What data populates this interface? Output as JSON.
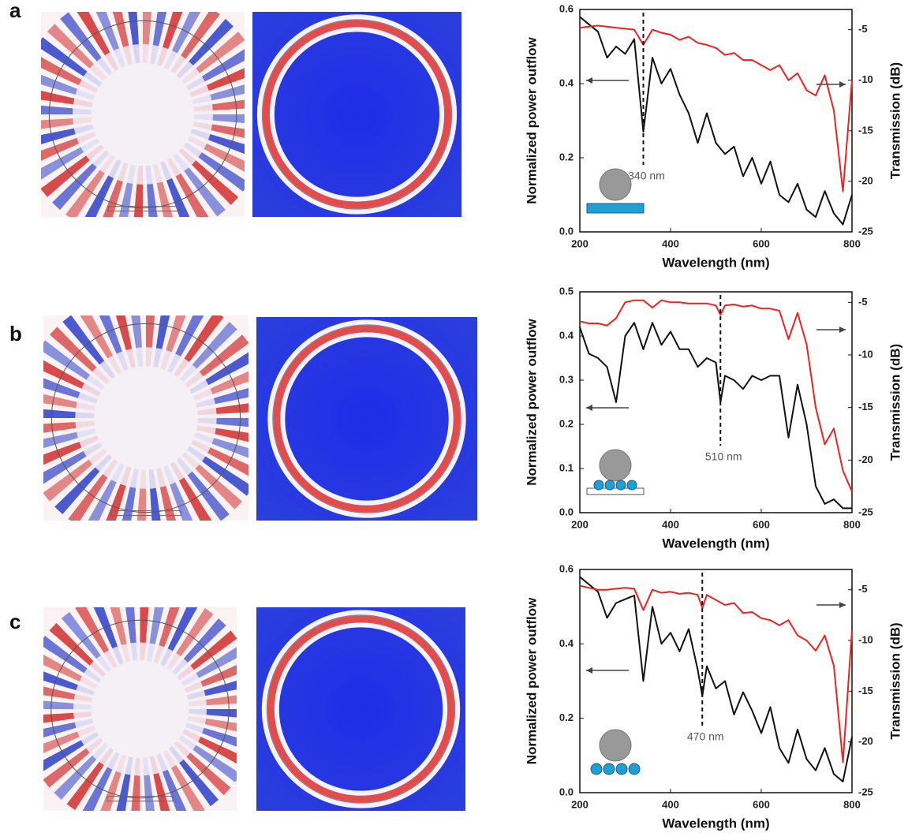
{
  "chart_data": [
    {
      "type": "line",
      "panel": "a",
      "x_label": "Wavelength (nm)",
      "y_label": "Normalized power outflow",
      "y2_label": "Transmission (dB)",
      "x": [
        200,
        220,
        240,
        260,
        280,
        300,
        320,
        340,
        360,
        380,
        400,
        420,
        440,
        460,
        480,
        500,
        520,
        540,
        560,
        580,
        600,
        620,
        640,
        660,
        680,
        700,
        720,
        740,
        760,
        780,
        800
      ],
      "xlim": [
        200,
        800
      ],
      "xticks": [
        200,
        400,
        600,
        800
      ],
      "ylim": [
        0,
        0.6
      ],
      "yticks": [
        {
          "value": 0,
          "label": "0.0"
        },
        0.2,
        0.4,
        0.6
      ],
      "y2lim": [
        -25,
        -3
      ],
      "y2ticks": [
        -5,
        -10,
        -15,
        -20,
        -25
      ],
      "series": [
        {
          "color": "#111111",
          "values": [
            0.58,
            0.56,
            0.54,
            0.47,
            0.5,
            0.48,
            0.52,
            0.27,
            0.47,
            0.4,
            0.44,
            0.37,
            0.32,
            0.24,
            0.32,
            0.24,
            0.21,
            0.23,
            0.15,
            0.2,
            0.13,
            0.19,
            0.1,
            0.08,
            0.13,
            0.06,
            0.04,
            0.11,
            0.05,
            0.02,
            0.1
          ]
        },
        {
          "color": "#ee2222",
          "axis": "y2",
          "values": [
            -4.8,
            -4.7,
            -4.6,
            -4.7,
            -4.8,
            -4.9,
            -5,
            -6.5,
            -5,
            -5.3,
            -5.5,
            -6,
            -5.7,
            -6.3,
            -6.5,
            -6.8,
            -7.5,
            -7.3,
            -8,
            -8,
            -8.5,
            -9,
            -8.5,
            -10,
            -9.3,
            -11,
            -11.5,
            -9.5,
            -13,
            -21,
            -10
          ]
        }
      ],
      "annotation": {
        "text": "340 nm",
        "x": 340
      }
    },
    {
      "type": "line",
      "panel": "b",
      "x_label": "Wavelength (nm)",
      "y_label": "Normalized power outflow",
      "y2_label": "Transmission (dB)",
      "x": [
        200,
        220,
        240,
        260,
        280,
        300,
        320,
        340,
        360,
        380,
        400,
        420,
        440,
        460,
        480,
        500,
        510,
        520,
        540,
        560,
        580,
        600,
        620,
        640,
        660,
        680,
        700,
        720,
        740,
        760,
        780,
        800
      ],
      "xlim": [
        200,
        800
      ],
      "xticks": [
        200,
        400,
        600,
        800
      ],
      "ylim": [
        0,
        0.5
      ],
      "yticks": [
        {
          "value": 0,
          "label": "0.0"
        },
        0.1,
        0.2,
        0.3,
        0.4,
        0.5
      ],
      "y2lim": [
        -25,
        -4
      ],
      "y2ticks": [
        -5,
        -10,
        -15,
        -20,
        -25
      ],
      "series": [
        {
          "color": "#111111",
          "values": [
            0.42,
            0.36,
            0.35,
            0.33,
            0.25,
            0.4,
            0.43,
            0.37,
            0.43,
            0.38,
            0.41,
            0.37,
            0.37,
            0.33,
            0.35,
            0.34,
            0.25,
            0.31,
            0.3,
            0.28,
            0.31,
            0.3,
            0.31,
            0.31,
            0.17,
            0.29,
            0.2,
            0.06,
            0.02,
            0.03,
            0.01,
            0.01
          ]
        },
        {
          "color": "#ee2222",
          "axis": "y2",
          "values": [
            -6.8,
            -7,
            -7,
            -7.2,
            -6.5,
            -5,
            -4.8,
            -4.8,
            -5.5,
            -4.8,
            -5,
            -5,
            -5.1,
            -5.1,
            -5.1,
            -5.3,
            -6.2,
            -5.3,
            -5.2,
            -5.4,
            -5.3,
            -5.6,
            -5.6,
            -5.8,
            -8.5,
            -6,
            -9,
            -15,
            -18.5,
            -17,
            -21,
            -23
          ]
        }
      ],
      "annotation": {
        "text": "510 nm",
        "x": 510
      }
    },
    {
      "type": "line",
      "panel": "c",
      "x_label": "Wavelength (nm)",
      "y_label": "Normalized power outflow",
      "y2_label": "Transmission (dB)",
      "x": [
        200,
        220,
        240,
        260,
        280,
        300,
        320,
        340,
        360,
        380,
        400,
        420,
        440,
        460,
        470,
        480,
        500,
        520,
        540,
        560,
        580,
        600,
        620,
        640,
        660,
        680,
        700,
        720,
        740,
        760,
        780,
        800
      ],
      "xlim": [
        200,
        800
      ],
      "xticks": [
        200,
        400,
        600,
        800
      ],
      "ylim": [
        0,
        0.6
      ],
      "yticks": [
        {
          "value": 0,
          "label": "0.0"
        },
        0.2,
        0.4,
        0.6
      ],
      "y2lim": [
        -25,
        -3
      ],
      "y2ticks": [
        -5,
        -10,
        -15,
        -20,
        -25
      ],
      "series": [
        {
          "color": "#111111",
          "values": [
            0.58,
            0.56,
            0.54,
            0.47,
            0.51,
            0.52,
            0.53,
            0.3,
            0.5,
            0.4,
            0.43,
            0.38,
            0.44,
            0.33,
            0.26,
            0.34,
            0.28,
            0.3,
            0.21,
            0.27,
            0.22,
            0.16,
            0.23,
            0.12,
            0.08,
            0.17,
            0.09,
            0.06,
            0.12,
            0.05,
            0.03,
            0.15
          ]
        },
        {
          "color": "#ee2222",
          "axis": "y2",
          "values": [
            -4.6,
            -4.8,
            -5,
            -5,
            -4.9,
            -4.8,
            -4.9,
            -7,
            -5,
            -5.3,
            -5.2,
            -5.4,
            -5.3,
            -5.5,
            -6.8,
            -5.5,
            -6,
            -6.5,
            -6.3,
            -7.3,
            -7.2,
            -7.8,
            -8,
            -8.5,
            -8,
            -9.5,
            -10,
            -11,
            -9.5,
            -12.5,
            -22,
            -9
          ]
        }
      ],
      "annotation": {
        "text": "470 nm",
        "x": 470
      }
    }
  ]
}
